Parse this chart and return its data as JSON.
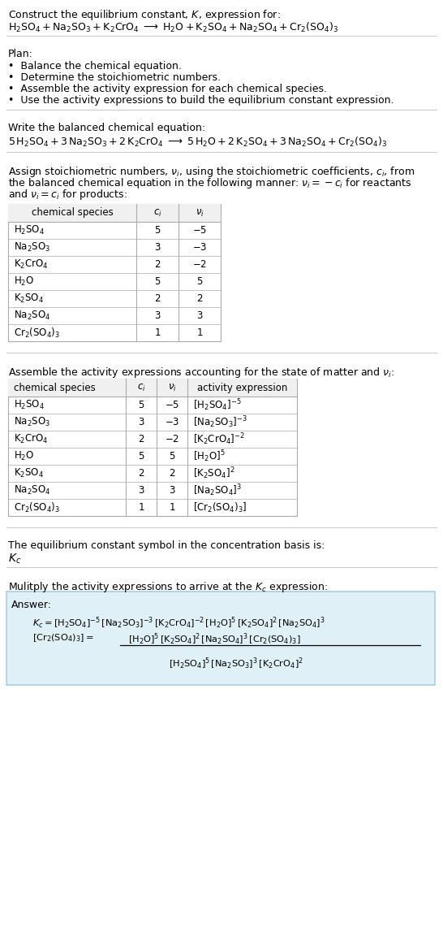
{
  "bg_color": "#ffffff",
  "text_color": "#000000",
  "title_line1": "Construct the equilibrium constant, $K$, expression for:",
  "reaction_unbalanced": "$\\mathrm{H_2SO_4 + Na_2SO_3 + K_2CrO_4 \\;\\longrightarrow\\; H_2O + K_2SO_4 + Na_2SO_4 + Cr_2(SO_4)_3}$",
  "plan_header": "Plan:",
  "plan_items": [
    "•  Balance the chemical equation.",
    "•  Determine the stoichiometric numbers.",
    "•  Assemble the activity expression for each chemical species.",
    "•  Use the activity expressions to build the equilibrium constant expression."
  ],
  "balanced_header": "Write the balanced chemical equation:",
  "balanced_eq": "$\\mathrm{5\\,H_2SO_4 + 3\\,Na_2SO_3 + 2\\,K_2CrO_4 \\;\\longrightarrow\\; 5\\,H_2O + 2\\,K_2SO_4 + 3\\,Na_2SO_4 + Cr_2(SO_4)_3}$",
  "stoich_lines": [
    "Assign stoichiometric numbers, $\\nu_i$, using the stoichiometric coefficients, $c_i$, from",
    "the balanced chemical equation in the following manner: $\\nu_i = -c_i$ for reactants",
    "and $\\nu_i = c_i$ for products:"
  ],
  "table1_cols": [
    "chemical species",
    "$c_i$",
    "$\\nu_i$"
  ],
  "table1_rows": [
    [
      "$\\mathrm{H_2SO_4}$",
      "5",
      "$-5$"
    ],
    [
      "$\\mathrm{Na_2SO_3}$",
      "3",
      "$-3$"
    ],
    [
      "$\\mathrm{K_2CrO_4}$",
      "2",
      "$-2$"
    ],
    [
      "$\\mathrm{H_2O}$",
      "5",
      "5"
    ],
    [
      "$\\mathrm{K_2SO_4}$",
      "2",
      "2"
    ],
    [
      "$\\mathrm{Na_2SO_4}$",
      "3",
      "3"
    ],
    [
      "$\\mathrm{Cr_2(SO_4)_3}$",
      "1",
      "1"
    ]
  ],
  "activity_header": "Assemble the activity expressions accounting for the state of matter and $\\nu_i$:",
  "table2_cols": [
    "chemical species",
    "$c_i$",
    "$\\nu_i$",
    "activity expression"
  ],
  "table2_rows": [
    [
      "$\\mathrm{H_2SO_4}$",
      "5",
      "$-5$",
      "$[\\mathrm{H_2SO_4}]^{-5}$"
    ],
    [
      "$\\mathrm{Na_2SO_3}$",
      "3",
      "$-3$",
      "$[\\mathrm{Na_2SO_3}]^{-3}$"
    ],
    [
      "$\\mathrm{K_2CrO_4}$",
      "2",
      "$-2$",
      "$[\\mathrm{K_2CrO_4}]^{-2}$"
    ],
    [
      "$\\mathrm{H_2O}$",
      "5",
      "5",
      "$[\\mathrm{H_2O}]^{5}$"
    ],
    [
      "$\\mathrm{K_2SO_4}$",
      "2",
      "2",
      "$[\\mathrm{K_2SO_4}]^{2}$"
    ],
    [
      "$\\mathrm{Na_2SO_4}$",
      "3",
      "3",
      "$[\\mathrm{Na_2SO_4}]^{3}$"
    ],
    [
      "$\\mathrm{Cr_2(SO_4)_3}$",
      "1",
      "1",
      "$[\\mathrm{Cr_2(SO_4)_3}]$"
    ]
  ],
  "kc_text": "The equilibrium constant symbol in the concentration basis is:",
  "kc_symbol": "$K_c$",
  "multiply_text": "Mulitply the activity expressions to arrive at the $K_c$ expression:",
  "answer_label": "Answer:",
  "kc_eq_line1": "$K_c = [\\mathrm{H_2SO_4}]^{-5}\\,[\\mathrm{Na_2SO_3}]^{-3}\\,[\\mathrm{K_2CrO_4}]^{-2}\\,[\\mathrm{H_2O}]^{5}\\,[\\mathrm{K_2SO_4}]^{2}\\,[\\mathrm{Na_2SO_4}]^{3}$",
  "kc_eq_line2_left": "$[\\mathrm{Cr_2(SO_4)_3}] = $",
  "kc_eq_frac_num": "$[\\mathrm{H_2O}]^{5}\\,[\\mathrm{K_2SO_4}]^{2}\\,[\\mathrm{Na_2SO_4}]^{3}\\,[\\mathrm{Cr_2(SO_4)_3}]$",
  "kc_eq_frac_den": "$[\\mathrm{H_2SO_4}]^{5}\\,[\\mathrm{Na_2SO_3}]^{3}\\,[\\mathrm{K_2CrO_4}]^{2}$",
  "answer_box_color": "#dff0f7",
  "answer_box_border": "#a8cfe0",
  "table_border": "#aaaaaa",
  "table_header_bg": "#f0f0f0",
  "hline_color": "#cccccc"
}
